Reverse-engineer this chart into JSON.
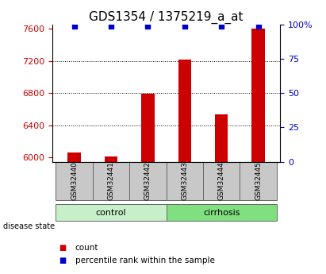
{
  "title": "GDS1354 / 1375219_a_at",
  "samples": [
    "GSM32440",
    "GSM32441",
    "GSM32442",
    "GSM32443",
    "GSM32444",
    "GSM32445"
  ],
  "counts": [
    6060,
    6015,
    6790,
    7220,
    6540,
    7600
  ],
  "groups": [
    "control",
    "control",
    "control",
    "cirrhosis",
    "cirrhosis",
    "cirrhosis"
  ],
  "ylim_left": [
    5950,
    7650
  ],
  "ylim_right": [
    0,
    100
  ],
  "yticks_left": [
    6000,
    6400,
    6800,
    7200,
    7600
  ],
  "yticks_right": [
    0,
    25,
    50,
    75,
    100
  ],
  "bar_color": "#cc0000",
  "marker_color": "#0000cc",
  "title_fontsize": 11,
  "control_color": "#c8f0c8",
  "cirrhosis_color": "#80e080",
  "sample_box_color": "#c8c8c8",
  "grid_color": "#000000",
  "left_tick_color": "#cc0000",
  "right_tick_color": "#0000cc",
  "base_value": 5950,
  "bar_width": 0.35,
  "dotted_gridlines": [
    6400,
    6800,
    7200
  ],
  "group_label_fontsize": 8,
  "sample_fontsize": 6.5,
  "legend_fontsize": 7.5
}
